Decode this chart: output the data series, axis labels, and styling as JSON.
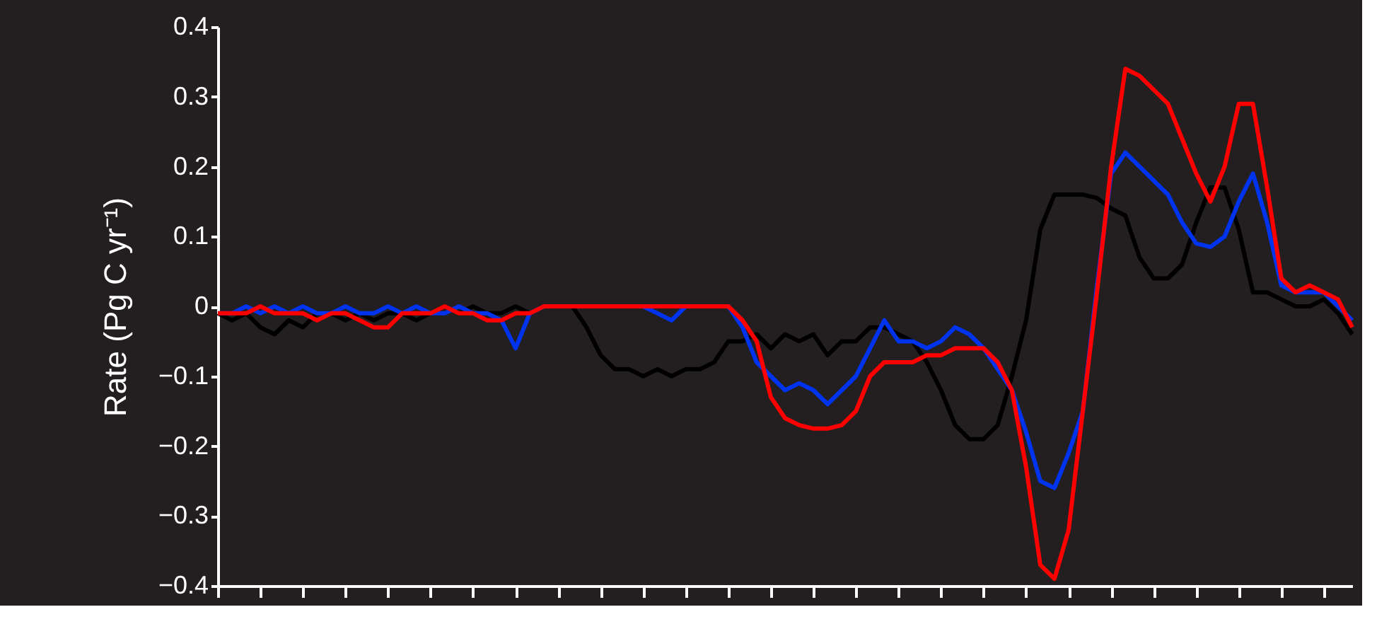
{
  "chart_data": {
    "type": "line",
    "ylabel": "Rate (Pg C yr⁻¹)",
    "categories": [
      null,
      null,
      null,
      null,
      null,
      null,
      null,
      null,
      null,
      null,
      null,
      null,
      null,
      null,
      null,
      null,
      null,
      null,
      null,
      null,
      null,
      null,
      null,
      null,
      null,
      null,
      null,
      null,
      null,
      null,
      null,
      null,
      null,
      null,
      null,
      null,
      null,
      null,
      null,
      null,
      null,
      null,
      null,
      null,
      null,
      null,
      null,
      null,
      null,
      null,
      null,
      null,
      null,
      null,
      null,
      null,
      null,
      null,
      null,
      null,
      null,
      null,
      null,
      null,
      null,
      null,
      null,
      null,
      null,
      null,
      null,
      null,
      null,
      null,
      null,
      null,
      null,
      null,
      null,
      null,
      null
    ],
    "series": [
      {
        "color": "#000000",
        "values": [
          -0.01,
          -0.02,
          -0.01,
          -0.03,
          -0.04,
          -0.02,
          -0.03,
          -0.01,
          -0.01,
          -0.02,
          -0.01,
          -0.02,
          -0.01,
          -0.01,
          -0.02,
          -0.01,
          0,
          -0.01,
          0,
          -0.01,
          -0.01,
          0,
          -0.01,
          0,
          0,
          0,
          -0.03,
          -0.07,
          -0.09,
          -0.09,
          -0.1,
          -0.09,
          -0.1,
          -0.09,
          -0.09,
          -0.08,
          -0.05,
          -0.05,
          -0.04,
          -0.06,
          -0.04,
          -0.05,
          -0.04,
          -0.07,
          -0.05,
          -0.05,
          -0.03,
          -0.03,
          -0.04,
          -0.05,
          -0.08,
          -0.12,
          -0.17,
          -0.19,
          -0.19,
          -0.17,
          -0.1,
          -0.02,
          0.11,
          0.16,
          0.16,
          0.16,
          0.155,
          0.14,
          0.13,
          0.07,
          0.04,
          0.04,
          0.06,
          0.12,
          0.17,
          0.17,
          0.11,
          0.02,
          0.02,
          0.01,
          0,
          0,
          0.01,
          -0.01,
          -0.04
        ]
      },
      {
        "color": "#0033ee",
        "values": [
          -0.01,
          -0.01,
          0,
          -0.01,
          0,
          -0.01,
          0,
          -0.01,
          -0.01,
          0,
          -0.01,
          -0.01,
          0,
          -0.01,
          0,
          -0.01,
          -0.01,
          0,
          -0.01,
          -0.01,
          -0.02,
          -0.06,
          -0.01,
          0,
          0,
          0,
          0,
          0,
          0,
          0,
          0,
          -0.01,
          -0.02,
          0,
          0,
          0,
          0,
          -0.03,
          -0.08,
          -0.1,
          -0.12,
          -0.11,
          -0.12,
          -0.14,
          -0.12,
          -0.1,
          -0.06,
          -0.02,
          -0.05,
          -0.05,
          -0.06,
          -0.05,
          -0.03,
          -0.04,
          -0.06,
          -0.09,
          -0.12,
          -0.18,
          -0.25,
          -0.26,
          -0.21,
          -0.15,
          0.03,
          0.19,
          0.22,
          0.2,
          0.18,
          0.16,
          0.12,
          0.09,
          0.085,
          0.1,
          0.15,
          0.19,
          0.12,
          0.03,
          0.02,
          0.02,
          0.02,
          0,
          -0.02
        ]
      },
      {
        "color": "#ff0000",
        "values": [
          -0.01,
          -0.01,
          -0.01,
          0,
          -0.01,
          -0.01,
          -0.01,
          -0.02,
          -0.01,
          -0.01,
          -0.02,
          -0.03,
          -0.03,
          -0.01,
          -0.01,
          -0.01,
          0,
          -0.01,
          -0.01,
          -0.02,
          -0.02,
          -0.01,
          -0.01,
          0,
          0,
          0,
          0,
          0,
          0,
          0,
          0,
          0,
          0,
          0,
          0,
          0,
          0,
          -0.02,
          -0.05,
          -0.13,
          -0.16,
          -0.17,
          -0.175,
          -0.175,
          -0.17,
          -0.15,
          -0.1,
          -0.08,
          -0.08,
          -0.08,
          -0.07,
          -0.07,
          -0.06,
          -0.06,
          -0.06,
          -0.08,
          -0.12,
          -0.23,
          -0.37,
          -0.39,
          -0.32,
          -0.15,
          0.02,
          0.2,
          0.34,
          0.33,
          0.31,
          0.29,
          0.24,
          0.19,
          0.15,
          0.2,
          0.29,
          0.29,
          0.17,
          0.04,
          0.02,
          0.03,
          0.02,
          0.01,
          -0.03
        ]
      }
    ],
    "ylim": [
      -0.4,
      0.4
    ],
    "yticks": [
      -0.4,
      -0.3,
      -0.2,
      -0.1,
      0,
      0.1,
      0.2,
      0.3,
      0.4
    ],
    "tick_labels": "y",
    "grid": false,
    "legend": false,
    "marker": "none",
    "line_style": "solid"
  }
}
